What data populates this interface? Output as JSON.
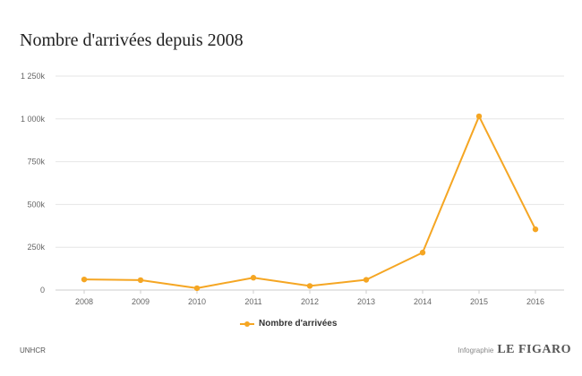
{
  "chart_data": {
    "type": "line",
    "title": "Nombre d'arrivées depuis 2008",
    "categories": [
      "2008",
      "2009",
      "2010",
      "2011",
      "2012",
      "2013",
      "2014",
      "2015",
      "2016"
    ],
    "series": [
      {
        "name": "Nombre d'arrivées",
        "values": [
          62000,
          58000,
          11000,
          72000,
          24000,
          60000,
          219000,
          1015000,
          355000
        ],
        "color": "#f5a623"
      }
    ],
    "y_ticks": [
      {
        "value": 0,
        "label": "0"
      },
      {
        "value": 250000,
        "label": "250k"
      },
      {
        "value": 500000,
        "label": "500k"
      },
      {
        "value": 750000,
        "label": "750k"
      },
      {
        "value": 1000000,
        "label": "1 000k"
      },
      {
        "value": 1250000,
        "label": "1 250k"
      }
    ],
    "ylim": [
      0,
      1250000
    ],
    "grid": true,
    "legend_position": "bottom-center"
  },
  "footer": {
    "source": "UNHCR",
    "credit_label": "Infographie",
    "credit_logo": "LE FIGARO"
  }
}
